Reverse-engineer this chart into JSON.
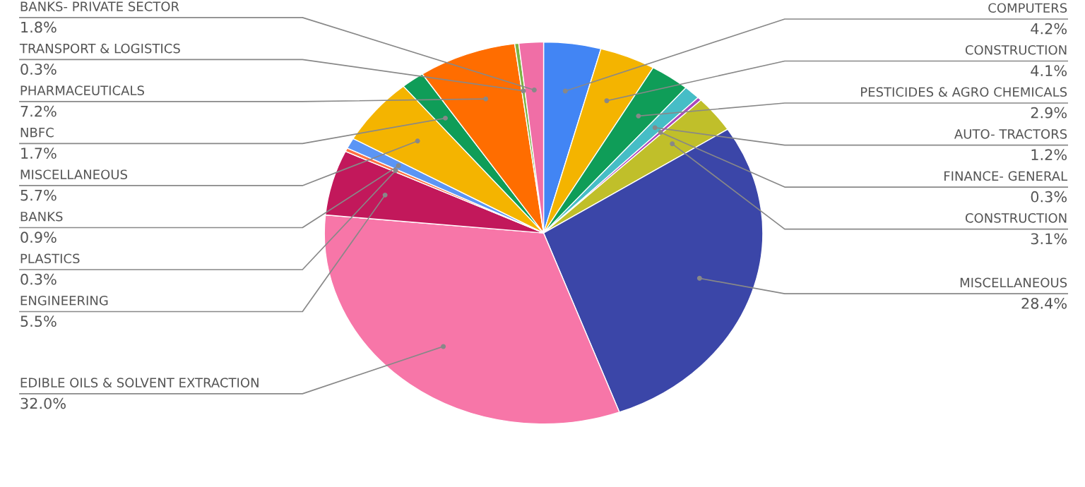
{
  "chart_data": {
    "type": "pie",
    "categories": [
      "COMPUTERS",
      "CONSTRUCTION",
      "PESTICIDES & AGRO CHEMICALS",
      "AUTO- TRACTORS",
      "FINANCE- GENERAL",
      "CONSTRUCTION",
      "MISCELLANEOUS",
      "EDIBLE OILS & SOLVENT EXTRACTION",
      "ENGINEERING",
      "PLASTICS",
      "BANKS",
      "MISCELLANEOUS",
      "NBFC",
      "PHARMACEUTICALS",
      "TRANSPORT & LOGISTICS",
      "BANKS- PRIVATE SECTOR"
    ],
    "values": [
      4.2,
      4.1,
      2.9,
      1.2,
      0.3,
      3.1,
      28.4,
      32.0,
      5.5,
      0.3,
      0.9,
      5.7,
      1.7,
      7.2,
      0.3,
      1.8
    ],
    "colors": [
      "#4285f4",
      "#f4b400",
      "#0f9d58",
      "#46bdc6",
      "#ab47bc",
      "#c0bf2a",
      "#3b46a8",
      "#f776a8",
      "#c2185b",
      "#ff7043",
      "#5b95f5",
      "#f4b400",
      "#0f9d58",
      "#ff6d00",
      "#7cb342",
      "#f06ea6"
    ],
    "value_labels": [
      "4.2%",
      "4.1%",
      "2.9%",
      "1.2%",
      "0.3%",
      "3.1%",
      "28.4%",
      "32.0%",
      "5.5%",
      "0.3%",
      "0.9%",
      "5.7%",
      "1.7%",
      "7.2%",
      "0.3%",
      "1.8%"
    ]
  }
}
